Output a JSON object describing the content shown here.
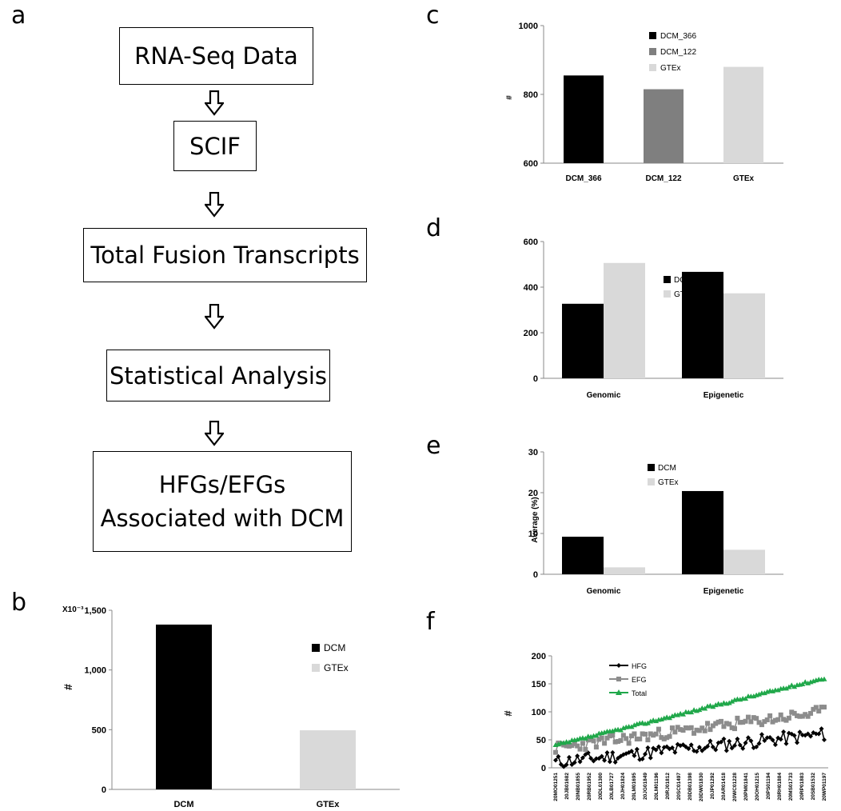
{
  "panels": {
    "a": "a",
    "b": "b",
    "c": "c",
    "d": "d",
    "e": "e",
    "f": "f"
  },
  "flowchart": {
    "steps": [
      {
        "line1": "RNA-Seq Data"
      },
      {
        "line1": "SCIF"
      },
      {
        "line1": "Total Fusion Transcripts"
      },
      {
        "line1": "Statistical Analysis"
      },
      {
        "line1": "HFGs/EFGs",
        "line2": "Associated with DCM"
      }
    ]
  },
  "colors": {
    "black": "#000000",
    "dark_gray": "#7f7f7f",
    "light_gray": "#d9d9d9",
    "gray_series": "#8c8c8c",
    "green": "#20a84a"
  },
  "chart_data": [
    {
      "panel": "b",
      "type": "bar",
      "categories": [
        "DCM",
        "GTEx"
      ],
      "values": [
        1380,
        495
      ],
      "ylim": [
        0,
        1500
      ],
      "yticks": [
        "0",
        "500",
        "1,000",
        "1,500"
      ],
      "ylabel": "#",
      "scale_note": "X10⁻³",
      "legend": [
        {
          "name": "DCM",
          "color": "#000000"
        },
        {
          "name": "GTEx",
          "color": "#d9d9d9"
        }
      ]
    },
    {
      "panel": "c",
      "type": "bar",
      "categories": [
        "DCM_366",
        "DCM_122",
        "GTEx"
      ],
      "values": [
        855,
        815,
        880
      ],
      "ylim": [
        600,
        1000
      ],
      "yticks": [
        "600",
        "800",
        "1000"
      ],
      "ylabel": "#",
      "legend": [
        {
          "name": "DCM_366",
          "color": "#000000"
        },
        {
          "name": "DCM_122",
          "color": "#7f7f7f"
        },
        {
          "name": "GTEx",
          "color": "#d9d9d9"
        }
      ]
    },
    {
      "panel": "d",
      "type": "bar",
      "categories": [
        "Genomic",
        "Epigenetic"
      ],
      "series": [
        {
          "name": "DCM",
          "values": [
            327,
            467
          ]
        },
        {
          "name": "GTEx",
          "values": [
            506,
            373
          ]
        }
      ],
      "ylim": [
        0,
        600
      ],
      "yticks": [
        "0",
        "200",
        "400",
        "600"
      ],
      "ylabel": ""
    },
    {
      "panel": "e",
      "type": "bar",
      "categories": [
        "Genomic",
        "Epigenetic"
      ],
      "series": [
        {
          "name": "DCM",
          "values": [
            9.2,
            20.4
          ]
        },
        {
          "name": "GTEx",
          "values": [
            1.7,
            6.0
          ]
        }
      ],
      "ylim": [
        0,
        30
      ],
      "yticks": [
        "0",
        "10",
        "20",
        "30"
      ],
      "ylabel": "Average (%)"
    },
    {
      "panel": "f",
      "type": "line",
      "ylim": [
        0,
        200
      ],
      "yticks": [
        "0",
        "50",
        "100",
        "150",
        "200"
      ],
      "ylabel": "#",
      "n_points": 100,
      "series": [
        {
          "name": "HFG",
          "start": 10,
          "end": 60,
          "noise": 12,
          "seed": 11
        },
        {
          "name": "EFG",
          "start": 35,
          "end": 100,
          "noise": 10,
          "seed": 23
        },
        {
          "name": "Total",
          "start": 40,
          "end": 160,
          "noise": 2,
          "seed": 37
        }
      ],
      "xticklabels": [
        "20MO01251",
        "20JB01682",
        "20NB01855",
        "20RB01952",
        "20DL01300",
        "20LB01727",
        "20JH01824",
        "20LM01695",
        "20JG01849",
        "20LM01196",
        "20RJ01812",
        "20SC01497",
        "20DB01398",
        "20DW01830",
        "20JP01292",
        "20AR01418",
        "20WC01228",
        "20PM01841",
        "20OH01215",
        "20PS01194",
        "20RH01884",
        "20MS01733",
        "20RP01883",
        "20SB01532",
        "20WP01197"
      ]
    }
  ]
}
